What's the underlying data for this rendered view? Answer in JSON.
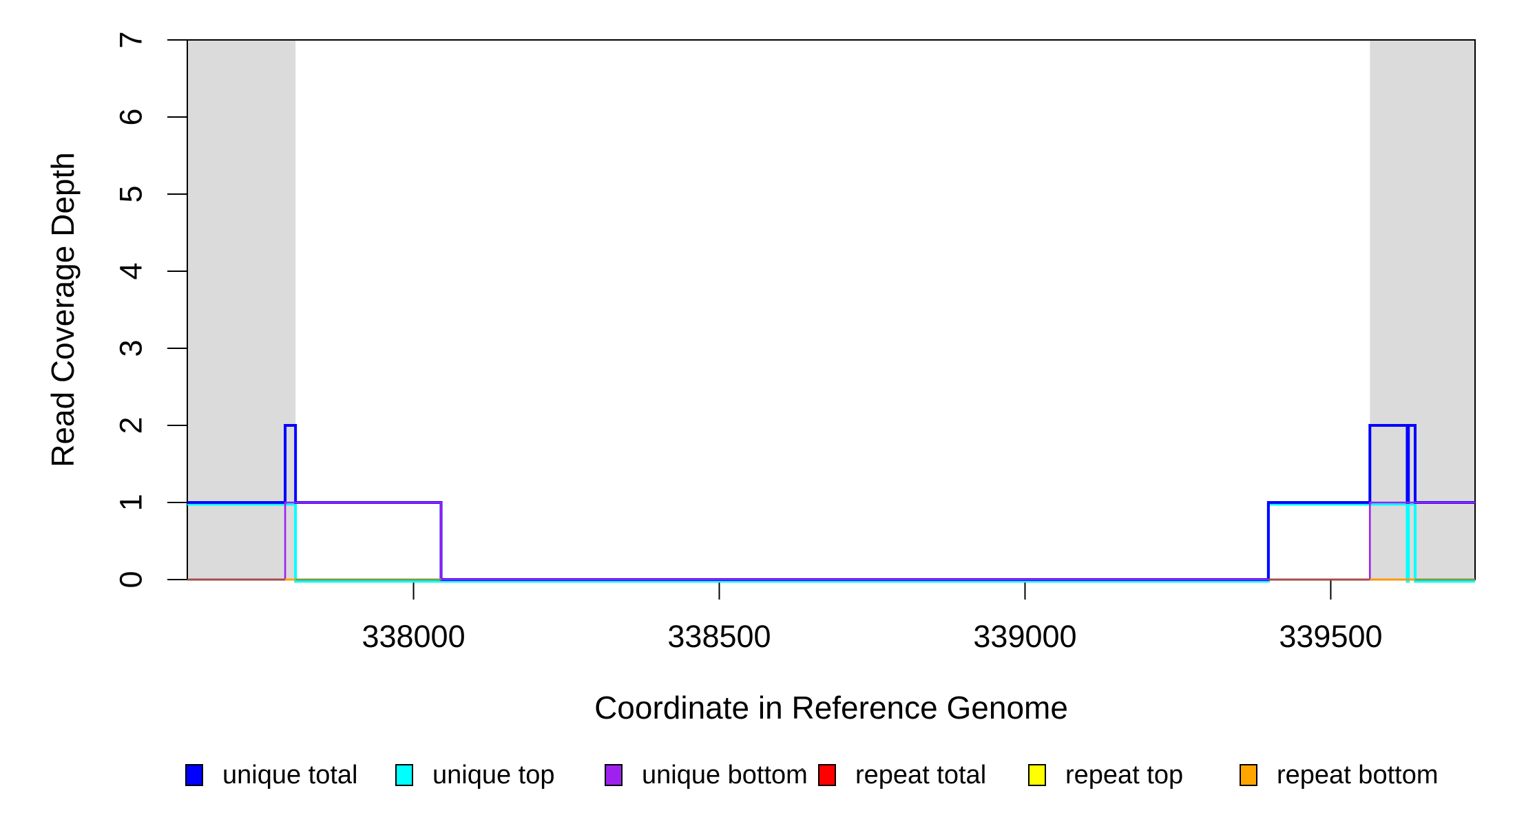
{
  "figure": {
    "background": "#ffffff",
    "plot_border_color": "#000000",
    "shade_color": "#dbdbdb"
  },
  "chart_data": {
    "type": "line",
    "subtype": "step-coverage",
    "title": "",
    "xlabel": "Coordinate in Reference Genome",
    "ylabel": "Read Coverage Depth",
    "xlim": [
      337630,
      339736
    ],
    "ylim": [
      0,
      7
    ],
    "x_ticks": [
      338000,
      338500,
      339000,
      339500
    ],
    "y_ticks": [
      0,
      1,
      2,
      3,
      4,
      5,
      6,
      7
    ],
    "grid": false,
    "legend_position": "bottom",
    "shaded_regions": [
      {
        "label": "shaded-region-left",
        "x0": 337630,
        "x1": 337807,
        "color": "#dbdbdb"
      },
      {
        "label": "shaded-region-right",
        "x0": 339564,
        "x1": 339736,
        "color": "#dbdbdb"
      }
    ],
    "series": [
      {
        "name": "unique total",
        "color": "#0000FF",
        "step_points": [
          [
            337630,
            1
          ],
          [
            337790,
            2
          ],
          [
            337807,
            1
          ],
          [
            338045,
            0
          ],
          [
            339398,
            1
          ],
          [
            339564,
            2
          ],
          [
            339625,
            1
          ],
          [
            339627,
            2
          ],
          [
            339638,
            1
          ],
          [
            339736,
            1
          ]
        ]
      },
      {
        "name": "unique top",
        "color": "#00FFFF",
        "step_points": [
          [
            337630,
            1
          ],
          [
            337807,
            0
          ],
          [
            339398,
            1
          ],
          [
            339625,
            0
          ],
          [
            339627,
            1
          ],
          [
            339638,
            0
          ],
          [
            339736,
            0
          ]
        ]
      },
      {
        "name": "unique bottom",
        "color": "#A020F0",
        "step_points": [
          [
            337630,
            0
          ],
          [
            337790,
            1
          ],
          [
            338045,
            0
          ],
          [
            339564,
            1
          ],
          [
            339736,
            1
          ]
        ]
      },
      {
        "name": "repeat total",
        "color": "#FF0000",
        "step_points": [
          [
            337630,
            0
          ],
          [
            339736,
            0
          ]
        ]
      },
      {
        "name": "repeat top",
        "color": "#FFFF00",
        "step_points": [
          [
            337630,
            0
          ],
          [
            339736,
            0
          ]
        ]
      },
      {
        "name": "repeat bottom",
        "color": "#FFA500",
        "step_points": [
          [
            337630,
            0
          ],
          [
            339736,
            0
          ]
        ]
      }
    ],
    "baseline_visible_segments": [
      {
        "x0": 337630,
        "x1": 337790,
        "color": "#a84a4a"
      },
      {
        "x0": 337790,
        "x1": 337807,
        "color": "#FFA500"
      },
      {
        "x0": 337807,
        "x1": 338045,
        "color": "#7f9b45"
      },
      {
        "x0": 339398,
        "x1": 339564,
        "color": "#a84a4a"
      },
      {
        "x0": 339564,
        "x1": 339638,
        "color": "#FF9800"
      },
      {
        "x0": 339638,
        "x1": 339736,
        "color": "#7f9b45"
      }
    ]
  },
  "legend": {
    "items": [
      {
        "label": "unique total",
        "color": "#0000FF"
      },
      {
        "label": "unique top",
        "color": "#00FFFF"
      },
      {
        "label": "unique bottom",
        "color": "#A020F0"
      },
      {
        "label": "repeat total",
        "color": "#FF0000"
      },
      {
        "label": "repeat top",
        "color": "#FFFF00"
      },
      {
        "label": "repeat bottom",
        "color": "#FFA500"
      }
    ]
  }
}
